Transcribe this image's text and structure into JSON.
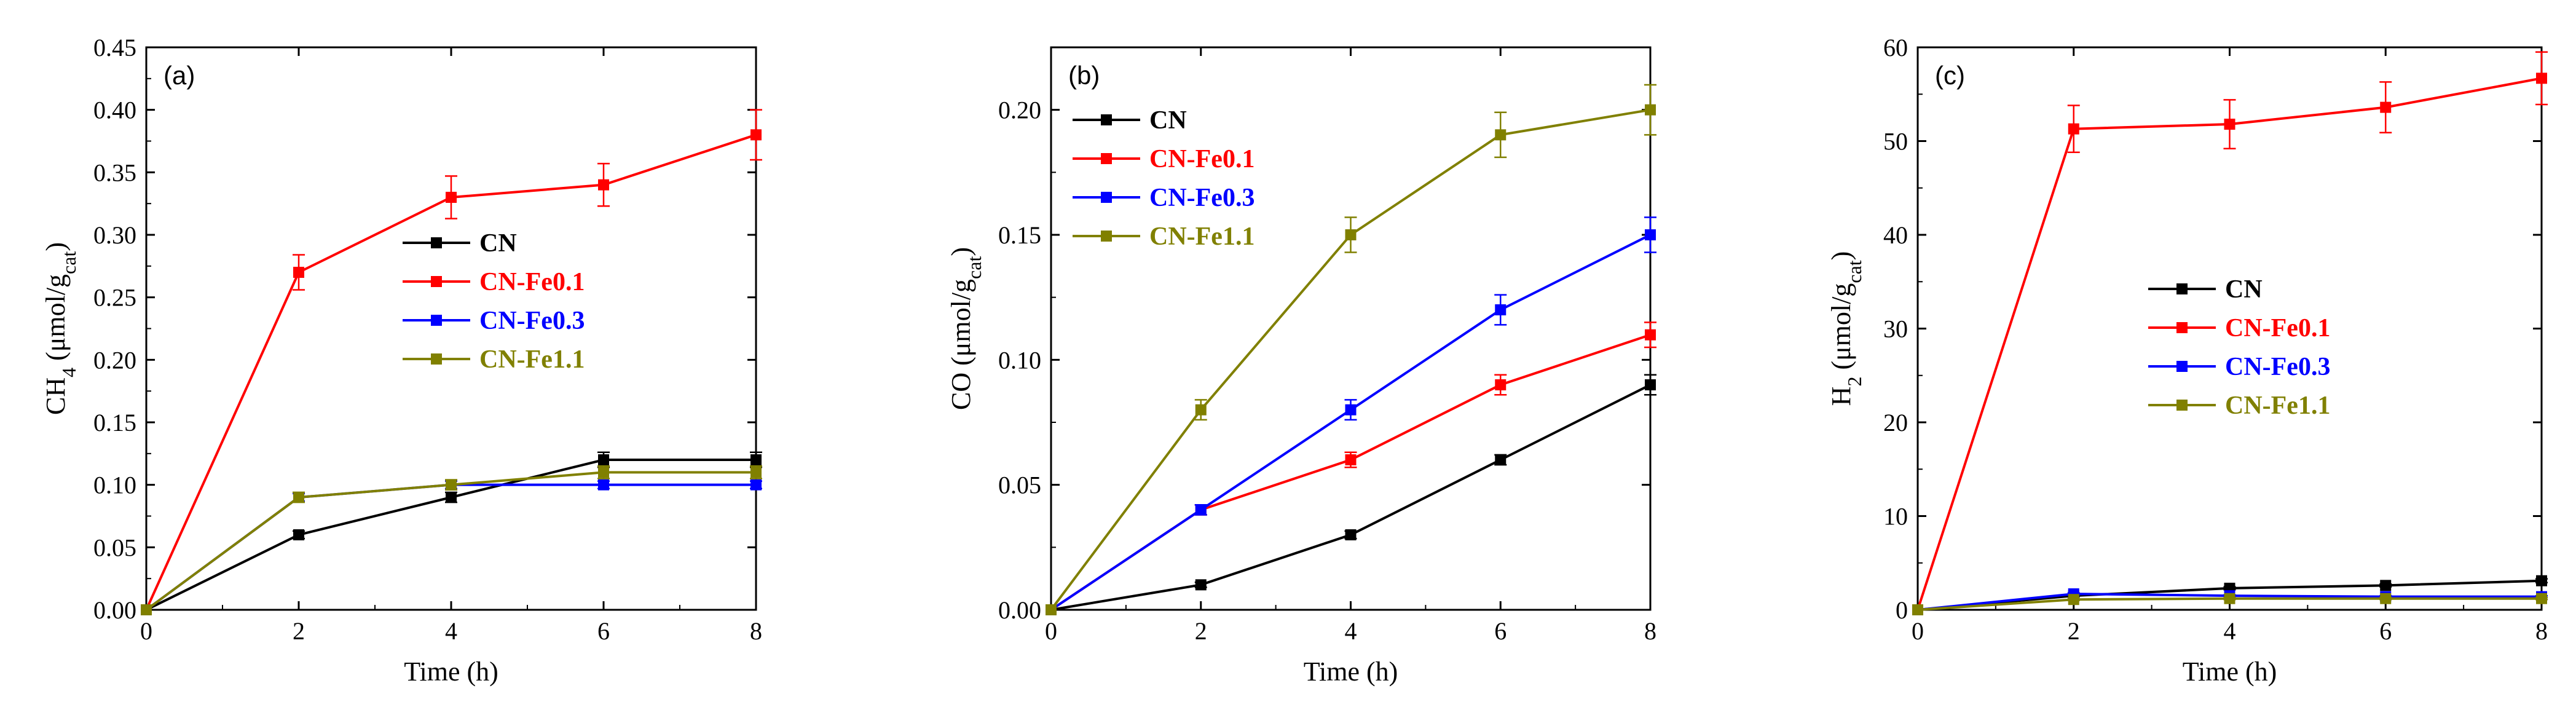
{
  "colors": {
    "CN": "#000000",
    "CN-Fe0.1": "#ff0000",
    "CN-Fe0.3": "#0000ff",
    "CN-Fe1.1": "#808000"
  },
  "chart_data": [
    {
      "type": "line",
      "panel_label": "(a)",
      "xlabel": "Time (h)",
      "ylabel": {
        "main": "CH",
        "sub": "4",
        "rest": " (μmol/g",
        "sub2": "cat",
        "end": ")"
      },
      "xlim": [
        0,
        8
      ],
      "ylim": [
        0,
        0.45
      ],
      "xticks": [
        0,
        2,
        4,
        6,
        8
      ],
      "xtick_labels": [
        "0",
        "2",
        "4",
        "6",
        "8"
      ],
      "yticks": [
        0,
        0.05,
        0.1,
        0.15,
        0.2,
        0.25,
        0.3,
        0.35,
        0.4,
        0.45
      ],
      "ytick_labels": [
        "0.00",
        "0.05",
        "0.10",
        "0.15",
        "0.20",
        "0.25",
        "0.30",
        "0.35",
        "0.40",
        "0.45"
      ],
      "legend_position": "center-right",
      "x": [
        0,
        2,
        4,
        6,
        8
      ],
      "series": [
        {
          "name": "CN",
          "values": [
            0,
            0.06,
            0.09,
            0.12,
            0.12
          ],
          "errors": [
            0,
            0.003,
            0.004,
            0.006,
            0.006
          ]
        },
        {
          "name": "CN-Fe0.1",
          "values": [
            0,
            0.27,
            0.33,
            0.34,
            0.38
          ],
          "errors": [
            0,
            0.014,
            0.017,
            0.017,
            0.02
          ]
        },
        {
          "name": "CN-Fe0.3",
          "values": [
            0,
            0.09,
            0.1,
            0.1,
            0.1
          ],
          "errors": [
            0,
            0.003,
            0.003,
            0.003,
            0.003
          ]
        },
        {
          "name": "CN-Fe1.1",
          "values": [
            0,
            0.09,
            0.1,
            0.11,
            0.11
          ],
          "errors": [
            0,
            0.004,
            0.004,
            0.005,
            0.005
          ]
        }
      ]
    },
    {
      "type": "line",
      "panel_label": "(b)",
      "xlabel": "Time (h)",
      "ylabel": {
        "main": "CO",
        "sub": "",
        "rest": " (μmol/g",
        "sub2": "cat",
        "end": ")"
      },
      "xlim": [
        0,
        8
      ],
      "ylim": [
        0,
        0.225
      ],
      "xticks": [
        0,
        2,
        4,
        6,
        8
      ],
      "xtick_labels": [
        "0",
        "2",
        "4",
        "6",
        "8"
      ],
      "yticks": [
        0,
        0.05,
        0.1,
        0.15,
        0.2
      ],
      "ytick_labels": [
        "0.00",
        "0.05",
        "0.10",
        "0.15",
        "0.20"
      ],
      "legend_position": "top-left",
      "x": [
        0,
        2,
        4,
        6,
        8
      ],
      "series": [
        {
          "name": "CN",
          "values": [
            0,
            0.01,
            0.03,
            0.06,
            0.09
          ],
          "errors": [
            0,
            0.001,
            0.0015,
            0.002,
            0.004
          ]
        },
        {
          "name": "CN-Fe0.1",
          "values": [
            0,
            0.04,
            0.06,
            0.09,
            0.11
          ],
          "errors": [
            0,
            0.002,
            0.003,
            0.004,
            0.005
          ]
        },
        {
          "name": "CN-Fe0.3",
          "values": [
            0,
            0.04,
            0.08,
            0.12,
            0.15
          ],
          "errors": [
            0,
            0.002,
            0.004,
            0.006,
            0.007
          ]
        },
        {
          "name": "CN-Fe1.1",
          "values": [
            0,
            0.08,
            0.15,
            0.19,
            0.2
          ],
          "errors": [
            0,
            0.004,
            0.007,
            0.009,
            0.01
          ]
        }
      ]
    },
    {
      "type": "line",
      "panel_label": "(c)",
      "xlabel": "Time (h)",
      "ylabel": {
        "main": "H",
        "sub": "2",
        "rest": " (μmol/g",
        "sub2": "cat",
        "end": ")"
      },
      "xlim": [
        0,
        8
      ],
      "ylim": [
        0,
        60
      ],
      "xticks": [
        0,
        2,
        4,
        6,
        8
      ],
      "xtick_labels": [
        "0",
        "2",
        "4",
        "6",
        "8"
      ],
      "yticks": [
        0,
        10,
        20,
        30,
        40,
        50,
        60
      ],
      "ytick_labels": [
        "0",
        "10",
        "20",
        "30",
        "40",
        "50",
        "60"
      ],
      "legend_position": "center-right",
      "x": [
        0,
        2,
        4,
        6,
        8
      ],
      "series": [
        {
          "name": "CN",
          "values": [
            0,
            1.5,
            2.3,
            2.6,
            3.1
          ],
          "errors": [
            0,
            0.1,
            0.15,
            0.15,
            0.2
          ]
        },
        {
          "name": "CN-Fe0.1",
          "values": [
            0,
            51.3,
            51.8,
            53.6,
            56.7
          ],
          "errors": [
            0,
            2.5,
            2.6,
            2.7,
            2.8
          ]
        },
        {
          "name": "CN-Fe0.3",
          "values": [
            0,
            1.7,
            1.5,
            1.4,
            1.4
          ],
          "errors": [
            0,
            0.1,
            0.1,
            0.1,
            0.1
          ]
        },
        {
          "name": "CN-Fe1.1",
          "values": [
            0,
            1.1,
            1.2,
            1.2,
            1.2
          ],
          "errors": [
            0,
            0.1,
            0.1,
            0.1,
            0.1
          ]
        }
      ]
    }
  ]
}
